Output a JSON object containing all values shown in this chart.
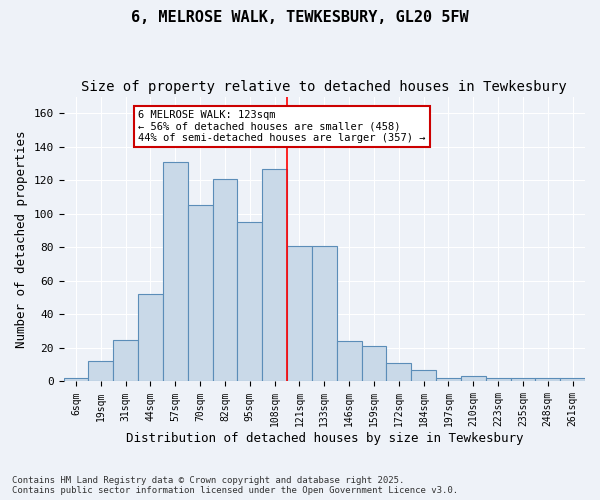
{
  "title": "6, MELROSE WALK, TEWKESBURY, GL20 5FW",
  "subtitle": "Size of property relative to detached houses in Tewkesbury",
  "xlabel": "Distribution of detached houses by size in Tewkesbury",
  "ylabel": "Number of detached properties",
  "categories": [
    "6sqm",
    "19sqm",
    "31sqm",
    "44sqm",
    "57sqm",
    "70sqm",
    "82sqm",
    "95sqm",
    "108sqm",
    "121sqm",
    "133sqm",
    "146sqm",
    "159sqm",
    "172sqm",
    "184sqm",
    "197sqm",
    "210sqm",
    "223sqm",
    "235sqm",
    "248sqm",
    "261sqm"
  ],
  "values": [
    2,
    12,
    25,
    52,
    131,
    105,
    121,
    95,
    127,
    81,
    81,
    24,
    21,
    11,
    7,
    2,
    3,
    2,
    2,
    2,
    2
  ],
  "bar_color": "#c9d9e8",
  "bar_edge_color": "#5b8db8",
  "bg_color": "#eef2f8",
  "grid_color": "#ffffff",
  "annotation_text": "6 MELROSE WALK: 123sqm\n← 56% of detached houses are smaller (458)\n44% of semi-detached houses are larger (357) →",
  "annotation_box_color": "#ffffff",
  "annotation_box_edge": "#cc0000",
  "ylim": [
    0,
    170
  ],
  "yticks": [
    0,
    20,
    40,
    60,
    80,
    100,
    120,
    140,
    160
  ],
  "footer": "Contains HM Land Registry data © Crown copyright and database right 2025.\nContains public sector information licensed under the Open Government Licence v3.0.",
  "title_fontsize": 11,
  "subtitle_fontsize": 10,
  "xlabel_fontsize": 9,
  "ylabel_fontsize": 9,
  "red_line_x": 8.5
}
